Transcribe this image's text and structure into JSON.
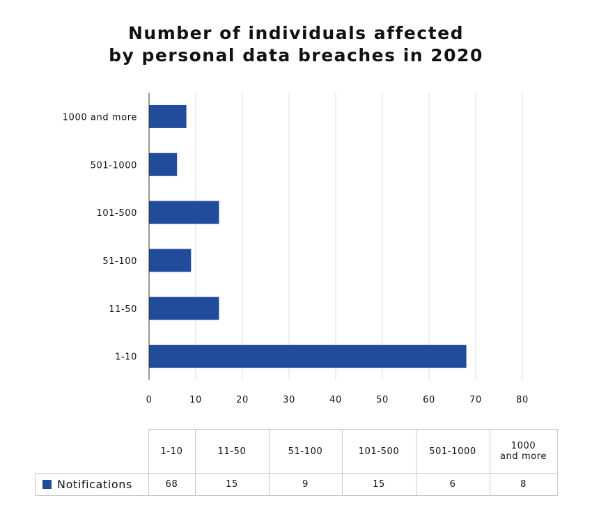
{
  "chart_data": {
    "type": "bar",
    "orientation": "horizontal",
    "title_lines": [
      "Number of individuals affected",
      "by personal data breaches in 2020"
    ],
    "categories": [
      "1-10",
      "11-50",
      "51-100",
      "101-500",
      "501-1000",
      "1000 and more"
    ],
    "table_headers": [
      [
        "1-10"
      ],
      [
        "11-50"
      ],
      [
        "51-100"
      ],
      [
        "101-500"
      ],
      [
        "501-1000"
      ],
      [
        "1000",
        "and more"
      ]
    ],
    "series": [
      {
        "name": "Notifications",
        "values": [
          68,
          15,
          9,
          15,
          6,
          8
        ],
        "color": "#234b9b"
      }
    ],
    "xlim": [
      0,
      80
    ],
    "xticks": [
      0,
      10,
      20,
      30,
      40,
      50,
      60,
      70,
      80
    ],
    "grid": "vertical",
    "legend": "data-table-below"
  }
}
